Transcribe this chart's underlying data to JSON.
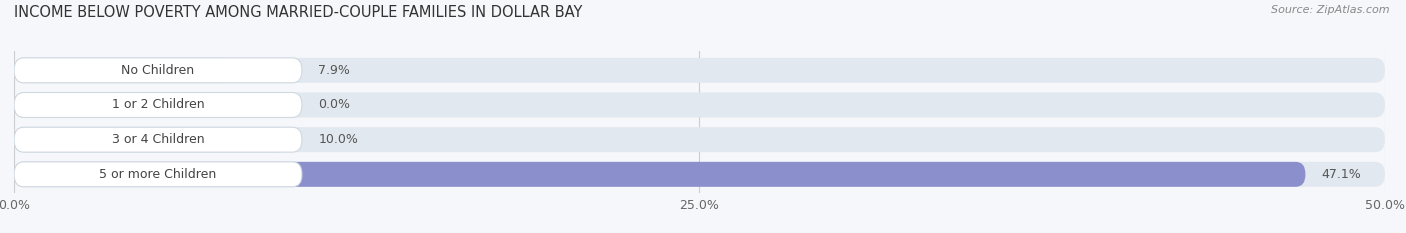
{
  "title": "INCOME BELOW POVERTY AMONG MARRIED-COUPLE FAMILIES IN DOLLAR BAY",
  "source": "Source: ZipAtlas.com",
  "categories": [
    "No Children",
    "1 or 2 Children",
    "3 or 4 Children",
    "5 or more Children"
  ],
  "values": [
    7.9,
    0.0,
    10.0,
    47.1
  ],
  "bar_colors": [
    "#8ab4d4",
    "#b09abe",
    "#5bbdb8",
    "#8b8fcc"
  ],
  "xlim": [
    0,
    50
  ],
  "xticks": [
    0,
    25,
    50
  ],
  "xtick_labels": [
    "0.0%",
    "25.0%",
    "50.0%"
  ],
  "background_color": "#f5f7fa",
  "bar_bg_color": "#e2e8ef",
  "label_bg_color": "#ffffff",
  "title_fontsize": 10.5,
  "label_fontsize": 9,
  "value_fontsize": 9,
  "tick_fontsize": 9
}
